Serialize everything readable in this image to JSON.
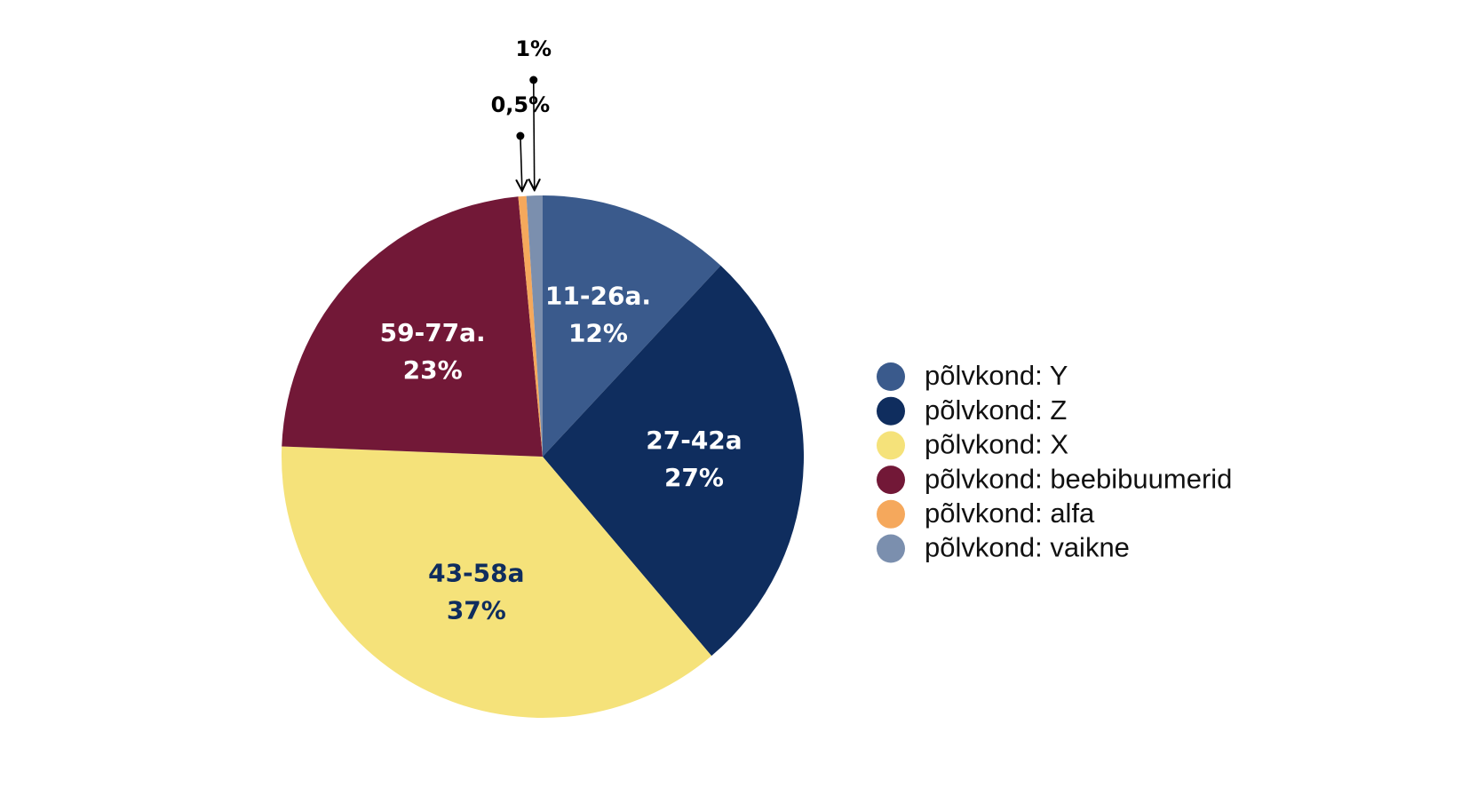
{
  "chart_data": {
    "type": "pie",
    "categories": [
      "põlvkond: Y",
      "põlvkond: Z",
      "põlvkond: X",
      "põlvkond: beebibuumerid",
      "põlvkond: alfa",
      "põlvkond: vaikne"
    ],
    "values": [
      12,
      27,
      37,
      23,
      0.5,
      1
    ],
    "value_labels": [
      "12%",
      "27%",
      "37%",
      "23%",
      "0,5%",
      "1%"
    ],
    "ranges": [
      "11-26a.",
      "27-42a",
      "43-58a",
      "59-77a.",
      null,
      null
    ],
    "colors": [
      "#3a5a8c",
      "#0f2d5e",
      "#f5e27a",
      "#721837",
      "#f5a85c",
      "#7b8fae"
    ],
    "label_colors": [
      "#ffffff",
      "#ffffff",
      "#0f2d5e",
      "#ffffff",
      "#000000",
      "#000000"
    ],
    "legend": "right"
  }
}
